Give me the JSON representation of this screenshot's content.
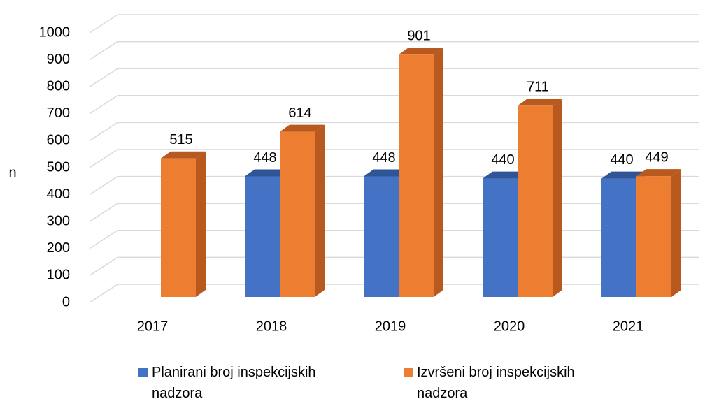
{
  "chart_data": {
    "type": "bar3d",
    "y_label": "n",
    "categories": [
      "2017",
      "2018",
      "2019",
      "2020",
      "2021"
    ],
    "series": [
      {
        "name": "Planirani broj inspekcijskih nadzora",
        "color": "#4472c4",
        "side": "#2f5597",
        "values": [
          null,
          448,
          448,
          440,
          440
        ]
      },
      {
        "name": "Izvršeni broj inspekcijskih nadzora",
        "color": "#ed7d31",
        "side": "#b85a1f",
        "values": [
          515,
          614,
          901,
          711,
          449
        ]
      }
    ],
    "ylim": [
      0,
      1000
    ],
    "yticks": [
      0,
      100,
      200,
      300,
      400,
      500,
      600,
      700,
      800,
      900,
      1000
    ],
    "grid": true
  }
}
